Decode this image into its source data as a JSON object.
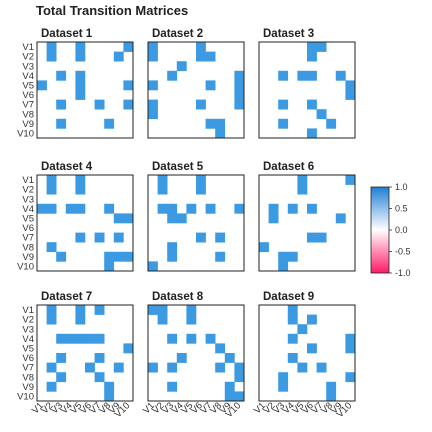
{
  "chart_data": {
    "type": "heatmap",
    "title": "Total Transition Matrices",
    "row_labels": [
      "V1",
      "V2",
      "V3",
      "V4",
      "V5",
      "V6",
      "V7",
      "V8",
      "V9",
      "V10"
    ],
    "col_labels": [
      "V1",
      "V2",
      "V3",
      "V4",
      "V5",
      "V6",
      "V7",
      "V8",
      "V9",
      "V10"
    ],
    "colorbar": {
      "ticks": [
        1.0,
        0.5,
        0.0,
        -0.5,
        -1.0
      ],
      "tick_labels": [
        "1.0",
        "0.5",
        "0.0",
        "-0.5",
        "-1.0"
      ],
      "range": [
        -1,
        1
      ],
      "colors": {
        "high": "#1f7fd6",
        "mid": "#ffffff",
        "low": "#ff1a66"
      }
    },
    "cell_color": "#3b9ae2",
    "panels": [
      {
        "name": "Dataset 1",
        "cells": [
          [
            0,
            1
          ],
          [
            0,
            4
          ],
          [
            0,
            9
          ],
          [
            1,
            1
          ],
          [
            1,
            4
          ],
          [
            1,
            8
          ],
          [
            3,
            2
          ],
          [
            3,
            4
          ],
          [
            4,
            0
          ],
          [
            4,
            4
          ],
          [
            4,
            9
          ],
          [
            5,
            4
          ],
          [
            6,
            2
          ],
          [
            6,
            6
          ],
          [
            6,
            9
          ],
          [
            8,
            2
          ],
          [
            8,
            7
          ]
        ]
      },
      {
        "name": "Dataset 2",
        "cells": [
          [
            0,
            0
          ],
          [
            0,
            5
          ],
          [
            1,
            0
          ],
          [
            1,
            5
          ],
          [
            1,
            6
          ],
          [
            2,
            3
          ],
          [
            3,
            2
          ],
          [
            3,
            9
          ],
          [
            4,
            0
          ],
          [
            4,
            6
          ],
          [
            4,
            9
          ],
          [
            5,
            9
          ],
          [
            6,
            0
          ],
          [
            6,
            5
          ],
          [
            6,
            9
          ],
          [
            7,
            0
          ],
          [
            8,
            6
          ],
          [
            8,
            7
          ],
          [
            9,
            7
          ]
        ]
      },
      {
        "name": "Dataset 3",
        "cells": [
          [
            0,
            5
          ],
          [
            0,
            6
          ],
          [
            1,
            5
          ],
          [
            3,
            2
          ],
          [
            3,
            4
          ],
          [
            3,
            5
          ],
          [
            3,
            8
          ],
          [
            4,
            9
          ],
          [
            5,
            9
          ],
          [
            6,
            2
          ],
          [
            6,
            5
          ],
          [
            7,
            6
          ],
          [
            8,
            2
          ],
          [
            8,
            7
          ],
          [
            9,
            5
          ]
        ]
      },
      {
        "name": "Dataset 4",
        "cells": [
          [
            0,
            1
          ],
          [
            0,
            4
          ],
          [
            1,
            1
          ],
          [
            1,
            4
          ],
          [
            3,
            0
          ],
          [
            3,
            1
          ],
          [
            3,
            3
          ],
          [
            3,
            4
          ],
          [
            3,
            7
          ],
          [
            4,
            8
          ],
          [
            4,
            9
          ],
          [
            6,
            4
          ],
          [
            6,
            6
          ],
          [
            6,
            8
          ],
          [
            7,
            1
          ],
          [
            8,
            2
          ],
          [
            8,
            7
          ],
          [
            8,
            8
          ],
          [
            8,
            9
          ],
          [
            9,
            7
          ]
        ]
      },
      {
        "name": "Dataset 5",
        "cells": [
          [
            0,
            1
          ],
          [
            0,
            5
          ],
          [
            1,
            1
          ],
          [
            1,
            5
          ],
          [
            3,
            1
          ],
          [
            3,
            2
          ],
          [
            3,
            4
          ],
          [
            3,
            6
          ],
          [
            3,
            9
          ],
          [
            4,
            2
          ],
          [
            4,
            3
          ],
          [
            6,
            5
          ],
          [
            6,
            7
          ],
          [
            7,
            2
          ],
          [
            8,
            2
          ],
          [
            8,
            7
          ],
          [
            9,
            0
          ]
        ]
      },
      {
        "name": "Dataset 6",
        "cells": [
          [
            0,
            4
          ],
          [
            0,
            9
          ],
          [
            1,
            4
          ],
          [
            3,
            1
          ],
          [
            3,
            3
          ],
          [
            3,
            5
          ],
          [
            4,
            1
          ],
          [
            4,
            8
          ],
          [
            6,
            5
          ],
          [
            6,
            6
          ],
          [
            7,
            0
          ],
          [
            8,
            2
          ],
          [
            8,
            3
          ],
          [
            9,
            2
          ]
        ]
      },
      {
        "name": "Dataset 7",
        "cells": [
          [
            0,
            1
          ],
          [
            0,
            4
          ],
          [
            0,
            6
          ],
          [
            1,
            1
          ],
          [
            1,
            4
          ],
          [
            3,
            2
          ],
          [
            3,
            3
          ],
          [
            3,
            4
          ],
          [
            3,
            5
          ],
          [
            3,
            6
          ],
          [
            4,
            9
          ],
          [
            5,
            2
          ],
          [
            5,
            6
          ],
          [
            6,
            1
          ],
          [
            6,
            5
          ],
          [
            6,
            8
          ],
          [
            7,
            2
          ],
          [
            7,
            6
          ],
          [
            8,
            1
          ],
          [
            8,
            7
          ],
          [
            9,
            7
          ]
        ]
      },
      {
        "name": "Dataset 8",
        "cells": [
          [
            0,
            0
          ],
          [
            0,
            1
          ],
          [
            0,
            4
          ],
          [
            1,
            1
          ],
          [
            1,
            4
          ],
          [
            3,
            2
          ],
          [
            3,
            4
          ],
          [
            3,
            6
          ],
          [
            4,
            7
          ],
          [
            5,
            3
          ],
          [
            5,
            8
          ],
          [
            6,
            0
          ],
          [
            6,
            2
          ],
          [
            6,
            7
          ],
          [
            6,
            9
          ],
          [
            7,
            9
          ],
          [
            8,
            2
          ],
          [
            8,
            8
          ],
          [
            9,
            8
          ],
          [
            9,
            9
          ]
        ]
      },
      {
        "name": "Dataset 9",
        "cells": [
          [
            0,
            3
          ],
          [
            1,
            3
          ],
          [
            1,
            5
          ],
          [
            2,
            4
          ],
          [
            3,
            3
          ],
          [
            3,
            9
          ],
          [
            4,
            5
          ],
          [
            4,
            9
          ],
          [
            5,
            3
          ],
          [
            6,
            4
          ],
          [
            6,
            6
          ],
          [
            7,
            2
          ],
          [
            7,
            9
          ],
          [
            8,
            2
          ],
          [
            8,
            7
          ],
          [
            9,
            7
          ]
        ]
      }
    ]
  }
}
